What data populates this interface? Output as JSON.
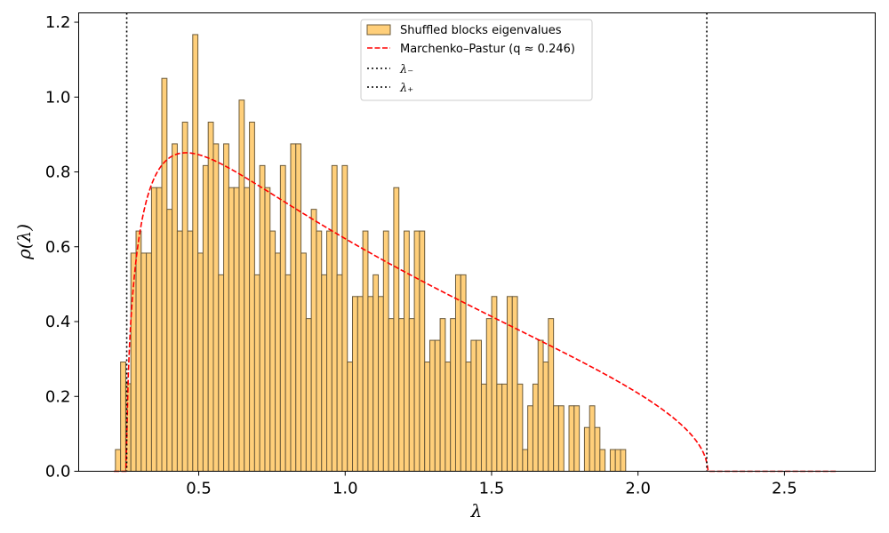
{
  "chart_data": {
    "type": "bar",
    "xlabel": "λ",
    "ylabel": "ρ(λ)",
    "xlim": [
      0.09,
      2.81
    ],
    "ylim": [
      0.0,
      1.225
    ],
    "xticks": [
      "0.5",
      "1.0",
      "1.5",
      "2.0",
      "2.5"
    ],
    "yticks": [
      "0.0",
      "0.2",
      "0.4",
      "0.6",
      "0.8",
      "1.0",
      "1.2"
    ],
    "legend_position": "top-center",
    "colors": {
      "bar_fill": "#ffcf7a",
      "bar_edge": "#6b5a3a",
      "mp_curve": "#ff0000",
      "bounds": "#000000"
    },
    "histogram": {
      "name": "Shuffled blocks eigenvalues",
      "bin_start": 0.2155,
      "bin_width": 0.0176,
      "values": [
        0.058,
        0.292,
        0.234,
        0.583,
        0.642,
        0.583,
        0.583,
        0.758,
        0.758,
        1.05,
        0.7,
        0.875,
        0.642,
        0.933,
        0.642,
        1.167,
        0.583,
        0.817,
        0.933,
        0.875,
        0.525,
        0.875,
        0.758,
        0.758,
        0.992,
        0.758,
        0.933,
        0.525,
        0.817,
        0.758,
        0.642,
        0.583,
        0.817,
        0.525,
        0.875,
        0.875,
        0.583,
        0.408,
        0.7,
        0.642,
        0.525,
        0.642,
        0.817,
        0.525,
        0.817,
        0.292,
        0.467,
        0.467,
        0.642,
        0.467,
        0.525,
        0.467,
        0.642,
        0.408,
        0.758,
        0.408,
        0.642,
        0.408,
        0.642,
        0.642,
        0.292,
        0.35,
        0.35,
        0.408,
        0.292,
        0.408,
        0.525,
        0.525,
        0.292,
        0.35,
        0.35,
        0.233,
        0.408,
        0.467,
        0.233,
        0.233,
        0.467,
        0.467,
        0.233,
        0.058,
        0.175,
        0.233,
        0.35,
        0.292,
        0.408,
        0.175,
        0.175,
        0.0,
        0.175,
        0.175,
        0.0,
        0.117,
        0.175,
        0.117,
        0.058,
        0.0,
        0.058,
        0.058,
        0.058
      ]
    },
    "mp_curve": {
      "name": "Marchenko–Pastur (q ≈ 0.246)",
      "q": 0.246,
      "x_range": [
        0.21,
        2.68
      ]
    },
    "bounds": [
      {
        "name": "λ₋",
        "x": 0.2541
      },
      {
        "name": "λ₊",
        "x": 2.2349
      }
    ]
  }
}
